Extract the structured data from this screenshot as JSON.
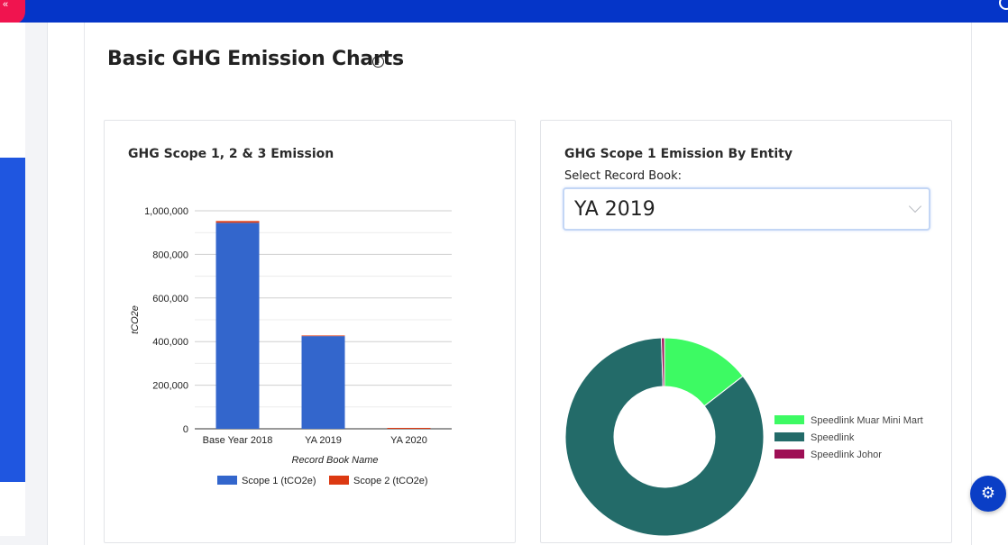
{
  "topbar": {
    "collapse_glyph": "«",
    "globe_icon": "globe-icon"
  },
  "page": {
    "title": "Basic GHG Emission Charts",
    "info_glyph": "i"
  },
  "left_card": {
    "title": "GHG Scope 1, 2 & 3 Emission"
  },
  "right_card": {
    "title": "GHG Scope 1 Emission By Entity",
    "select_label": "Select Record Book:",
    "select_value": "YA 2019"
  },
  "settings": {
    "glyph": "⚙",
    "icon": "gear-icon"
  },
  "colors": {
    "scope1": "#3366cc",
    "scope2": "#dc3912",
    "topbar": "#0535c8",
    "muar": "#3dfa63",
    "speedlink": "#236b69",
    "johor": "#9e0f55"
  },
  "chart_data": [
    {
      "type": "bar",
      "stacked": true,
      "categories": [
        "Base Year 2018",
        "YA 2019",
        "YA 2020"
      ],
      "series": [
        {
          "name": "Scope 1 (tCO2e)",
          "values": [
            945000,
            425000,
            0
          ]
        },
        {
          "name": "Scope 2 (tCO2e)",
          "values": [
            8000,
            3000,
            0
          ]
        }
      ],
      "xlabel": "Record Book Name",
      "ylabel": "tCO2e",
      "ylim": [
        0,
        1000000
      ],
      "yticks": [
        0,
        200000,
        400000,
        600000,
        800000,
        1000000
      ],
      "ytick_labels": [
        "0",
        "200,000",
        "400,000",
        "600,000",
        "800,000",
        "1,000,000"
      ],
      "grid": true,
      "legend": "bottom"
    },
    {
      "type": "pie",
      "donut": true,
      "labels": [
        "Speedlink Muar Mini Mart",
        "Speedlink",
        "Speedlink Johor"
      ],
      "values": [
        14.5,
        85.0,
        0.5
      ],
      "legend": "right"
    }
  ]
}
